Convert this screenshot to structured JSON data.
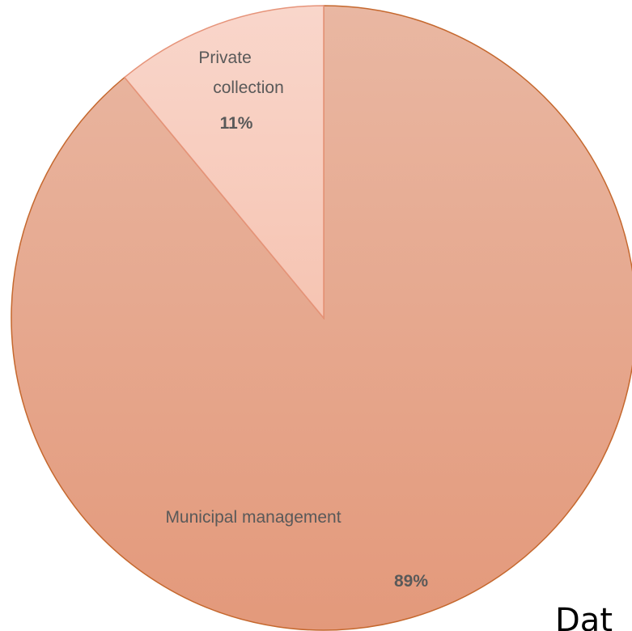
{
  "chart_data": {
    "type": "pie",
    "slices": [
      {
        "label": "Municipal management",
        "value": 89,
        "percent_label": "89%",
        "color": "#e6a68a"
      },
      {
        "label": "Private collection",
        "value": 11,
        "percent_label": "11%",
        "color": "#f8d0c2"
      }
    ],
    "edge_color": "#c5682e",
    "divider_color": "#e6947a"
  },
  "clipped_text": "Dat"
}
